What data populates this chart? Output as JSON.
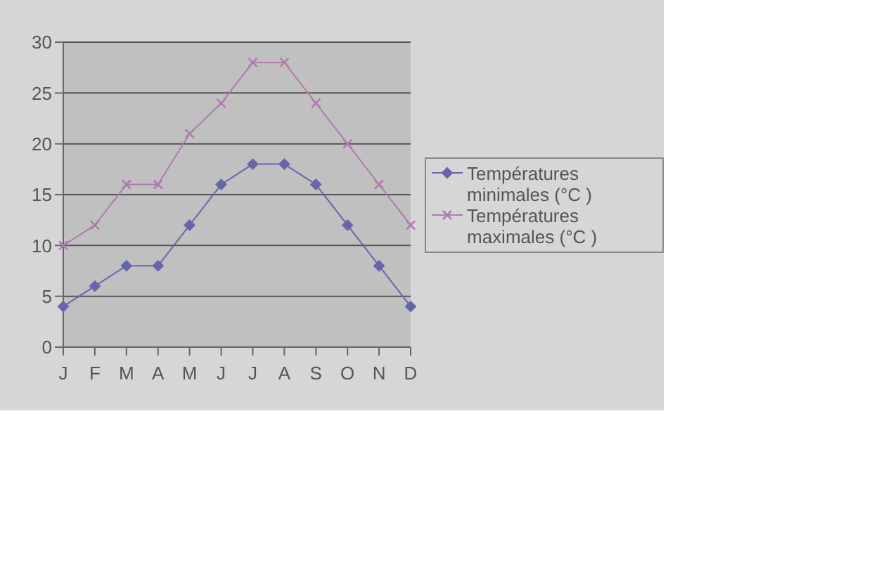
{
  "chart_data": {
    "type": "line",
    "categories": [
      "J",
      "F",
      "M",
      "A",
      "M",
      "J",
      "J",
      "A",
      "S",
      "O",
      "N",
      "D"
    ],
    "series": [
      {
        "name": "Températures minimales (°C )",
        "color": "#6666aa",
        "marker": "diamond",
        "values": [
          4,
          6,
          8,
          8,
          12,
          16,
          18,
          18,
          16,
          12,
          8,
          4
        ]
      },
      {
        "name": "Températures maximales (°C )",
        "color": "#b07ab0",
        "marker": "cross",
        "values": [
          10,
          12,
          16,
          16,
          21,
          24,
          28,
          28,
          24,
          20,
          16,
          12
        ]
      }
    ],
    "ylim": [
      0,
      30
    ],
    "yticks": [
      0,
      5,
      10,
      15,
      20,
      25,
      30
    ],
    "grid": "y",
    "legend": "right"
  }
}
